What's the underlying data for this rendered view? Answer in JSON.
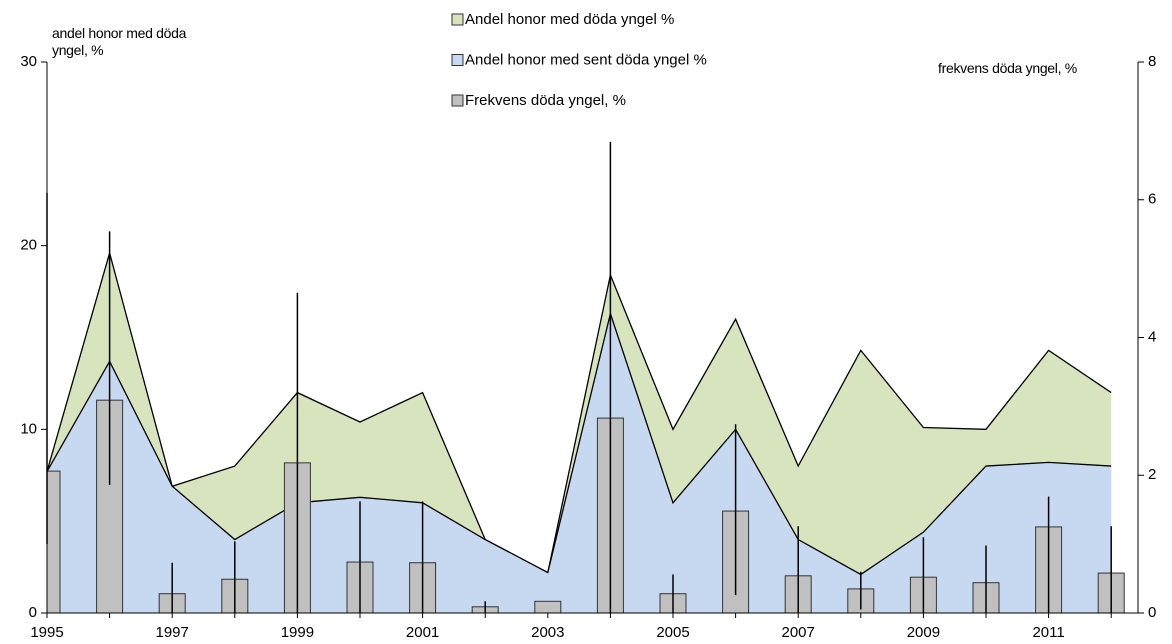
{
  "chart_data": {
    "type": "combo",
    "categories": [
      "1995",
      null,
      "1997",
      null,
      "1999",
      null,
      "2001",
      null,
      "2003",
      null,
      "2005",
      null,
      "2007",
      null,
      "2009",
      null,
      "2011",
      null
    ],
    "series": [
      {
        "name": "Andel honor med döda yngel %",
        "type": "area",
        "color": "#d7e4bd",
        "values": [
          7.7,
          19.6,
          6.9,
          8,
          12,
          10.4,
          12,
          4,
          2.2,
          18.4,
          10,
          16,
          8,
          14.3,
          10.1,
          10,
          14.3,
          12
        ]
      },
      {
        "name": "Andel honor med sent döda yngel %",
        "type": "area",
        "color": "#c6d9f1",
        "values": [
          7.7,
          13.7,
          6.9,
          4,
          6,
          6.3,
          6,
          4,
          2.2,
          16.3,
          6,
          10,
          4,
          2.1,
          4.4,
          8,
          8.2,
          8
        ]
      },
      {
        "name": "Frekvens döda yngel, %",
        "type": "bar",
        "axis": "y2",
        "color": "#c0c0c0",
        "values": [
          2.06,
          3.09,
          0.28,
          0.49,
          2.18,
          0.74,
          0.73,
          0.09,
          0.17,
          2.83,
          0.28,
          1.48,
          0.54,
          0.35,
          0.52,
          0.44,
          1.25,
          0.58
        ],
        "error_high": [
          6.1,
          5.54,
          0.73,
          1.04,
          4.65,
          1.62,
          1.62,
          0.17,
          null,
          6.84,
          0.56,
          2.74,
          1.26,
          0.6,
          1.1,
          0.98,
          1.69,
          1.26
        ],
        "error_low": [
          1.0,
          1.86,
          0,
          0,
          0,
          0,
          0,
          0,
          null,
          0,
          0,
          0.26,
          0,
          0.05,
          0,
          0,
          0,
          0
        ]
      }
    ],
    "ylim": [
      0,
      30
    ],
    "yticks": [
      0,
      10,
      20,
      30
    ],
    "y2lim": [
      0,
      8
    ],
    "y2ticks": [
      0,
      2,
      4,
      6,
      8
    ],
    "y_label": "andel honor med döda yngel, %",
    "y2_label": "frekvens döda yngel, %"
  }
}
